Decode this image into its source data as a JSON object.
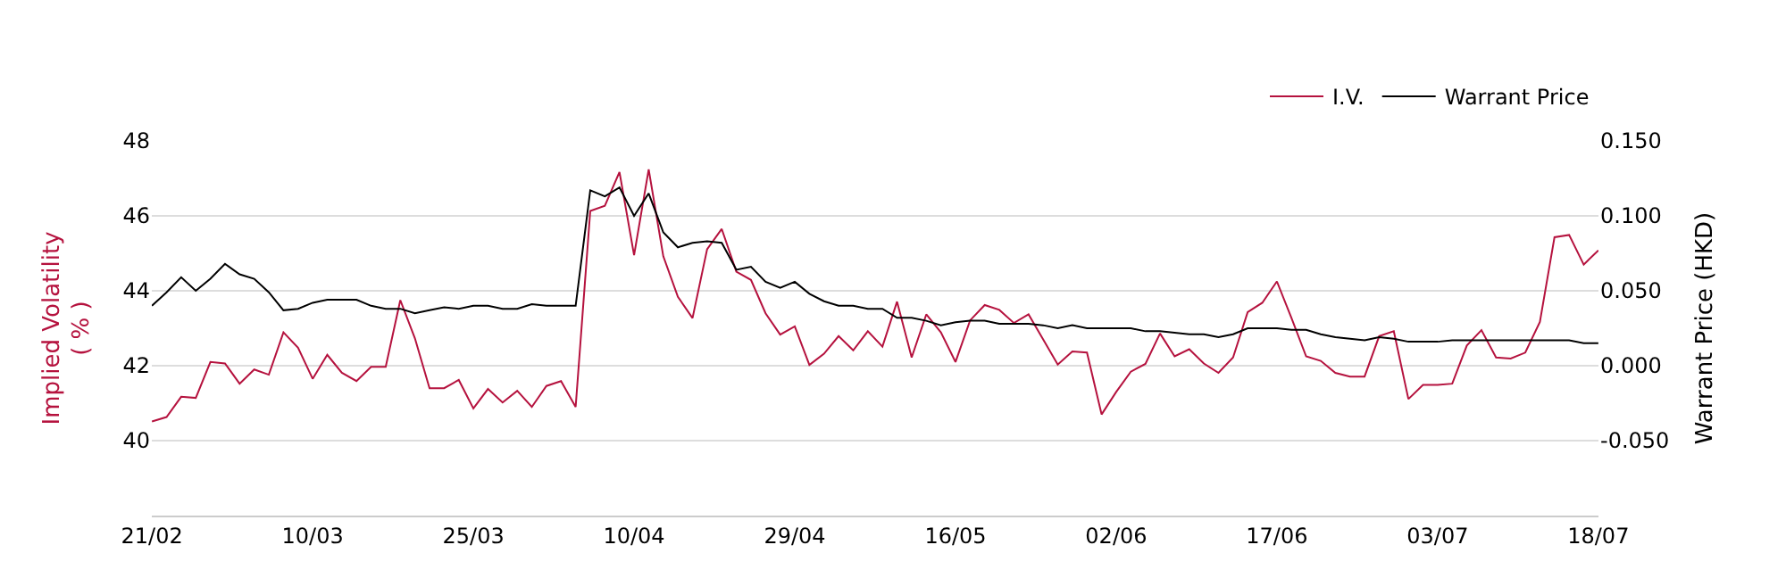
{
  "chart_data": {
    "type": "line",
    "ylabel": "Implied Volatility\n( % )",
    "y2label": "Warrant Price (HKD)",
    "categories": [
      "21/02",
      null,
      null,
      null,
      null,
      null,
      null,
      null,
      null,
      null,
      null,
      "10/03",
      null,
      null,
      null,
      null,
      null,
      null,
      null,
      null,
      null,
      null,
      "25/03",
      null,
      null,
      null,
      null,
      null,
      null,
      null,
      null,
      null,
      null,
      "10/04",
      null,
      null,
      null,
      null,
      null,
      null,
      null,
      null,
      null,
      null,
      "29/04",
      null,
      null,
      null,
      null,
      null,
      null,
      null,
      null,
      null,
      null,
      "16/05",
      null,
      null,
      null,
      null,
      null,
      null,
      null,
      null,
      null,
      null,
      "02/06",
      null,
      null,
      null,
      null,
      null,
      null,
      null,
      null,
      null,
      null,
      "17/06",
      null,
      null,
      null,
      null,
      null,
      null,
      null,
      null,
      null,
      null,
      "03/07",
      null,
      null,
      null,
      null,
      null,
      null,
      null,
      null,
      null,
      null,
      "18/07"
    ],
    "series": [
      {
        "name": "I.V.",
        "color": "#b5123e",
        "values": [
          40.51,
          40.63,
          41.17,
          41.14,
          42.1,
          42.06,
          41.52,
          41.9,
          41.76,
          42.89,
          42.48,
          41.65,
          42.29,
          41.81,
          41.59,
          41.97,
          41.97,
          43.75,
          42.73,
          41.4,
          41.4,
          41.62,
          40.86,
          41.38,
          41.02,
          41.33,
          40.9,
          41.46,
          41.59,
          40.9,
          46.13,
          46.27,
          47.17,
          44.95,
          47.24,
          44.92,
          43.84,
          43.27,
          45.11,
          45.65,
          44.51,
          44.29,
          43.4,
          42.83,
          43.05,
          42.02,
          42.32,
          42.79,
          42.41,
          42.92,
          42.51,
          43.71,
          42.22,
          43.37,
          42.89,
          42.1,
          43.21,
          43.62,
          43.49,
          43.14,
          43.37,
          42.7,
          42.03,
          42.38,
          42.35,
          40.7,
          41.3,
          41.84,
          42.05,
          42.86,
          42.25,
          42.44,
          42.06,
          41.81,
          42.22,
          43.43,
          43.68,
          44.25,
          43.27,
          42.25,
          42.13,
          41.81,
          41.71,
          41.71,
          42.79,
          42.92,
          41.11,
          41.49,
          41.49,
          41.52,
          42.54,
          42.95,
          42.22,
          42.19,
          42.35,
          43.17,
          45.43,
          45.49,
          44.7,
          45.08
        ]
      },
      {
        "name": "Warrant Price",
        "color": "#000000",
        "axis": "y2",
        "values": [
          0.04,
          0.049,
          0.059,
          0.05,
          0.058,
          0.068,
          0.061,
          0.058,
          0.049,
          0.037,
          0.038,
          0.042,
          0.044,
          0.044,
          0.044,
          0.04,
          0.038,
          0.038,
          0.035,
          0.037,
          0.039,
          0.038,
          0.04,
          0.04,
          0.038,
          0.038,
          0.041,
          0.04,
          0.04,
          0.04,
          0.117,
          0.113,
          0.119,
          0.1,
          0.115,
          0.089,
          0.079,
          0.082,
          0.083,
          0.082,
          0.064,
          0.066,
          0.056,
          0.052,
          0.056,
          0.048,
          0.043,
          0.04,
          0.04,
          0.038,
          0.038,
          0.032,
          0.032,
          0.03,
          0.027,
          0.029,
          0.03,
          0.03,
          0.028,
          0.028,
          0.028,
          0.027,
          0.025,
          0.027,
          0.025,
          0.025,
          0.025,
          0.025,
          0.023,
          0.023,
          0.022,
          0.021,
          0.021,
          0.019,
          0.021,
          0.025,
          0.025,
          0.025,
          0.024,
          0.024,
          0.021,
          0.019,
          0.018,
          0.017,
          0.019,
          0.018,
          0.016,
          0.016,
          0.016,
          0.017,
          0.017,
          0.017,
          0.017,
          0.017,
          0.017,
          0.017,
          0.017,
          0.017,
          0.015,
          0.015
        ]
      }
    ],
    "ylim": [
      38,
      48
    ],
    "yticks": [
      40,
      42,
      44,
      46,
      48
    ],
    "y2lim": [
      -0.1,
      0.15
    ],
    "y2ticks": [
      {
        "value": -0.05,
        "label": "-0.050"
      },
      {
        "value": 0,
        "label": "0.000"
      },
      {
        "value": 0.05,
        "label": "0.050"
      },
      {
        "value": 0.1,
        "label": "0.100"
      },
      {
        "value": 0.15,
        "label": "0.150"
      }
    ],
    "grid": "y",
    "legend": "top right",
    "marker": "none",
    "line_style": "solid"
  }
}
